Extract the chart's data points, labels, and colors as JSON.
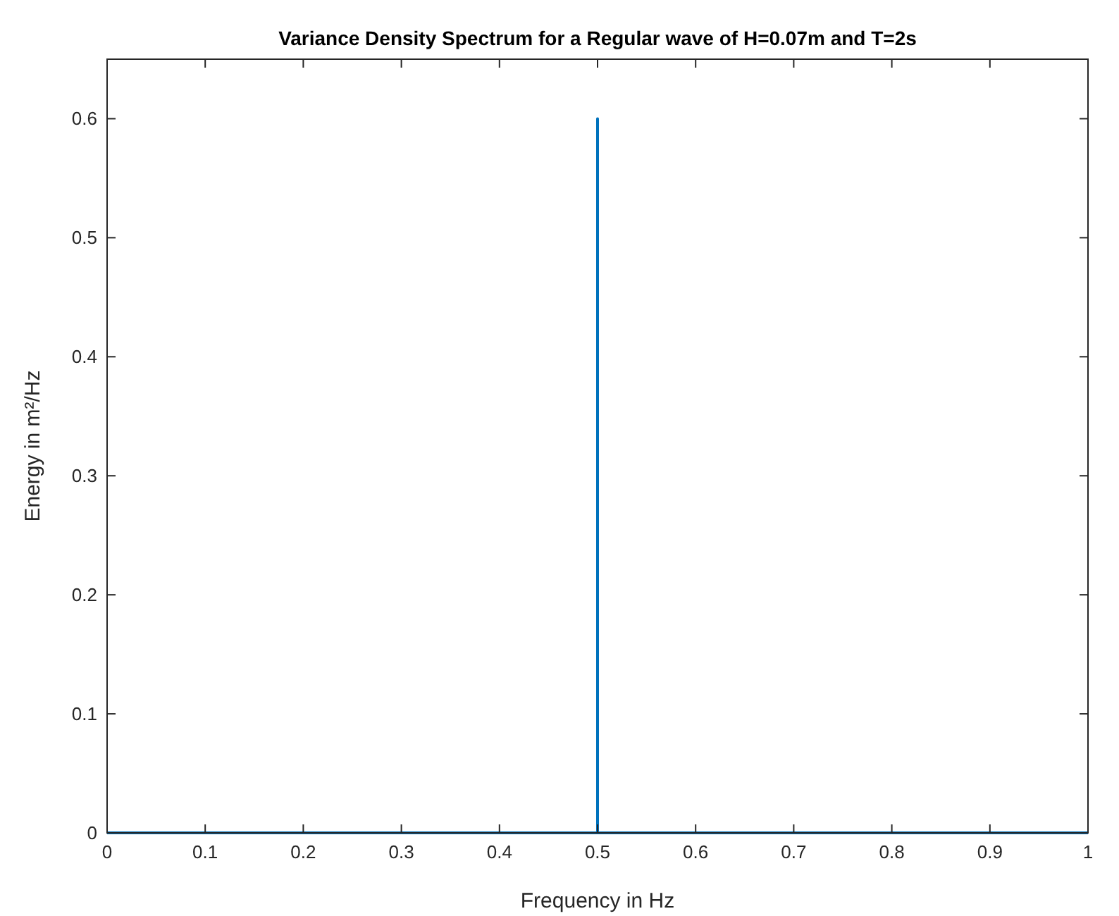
{
  "chart_data": {
    "type": "line",
    "title": "Variance Density Spectrum for a Regular wave of H=0.07m and T=2s",
    "xlabel": "Frequency in Hz",
    "ylabel": "Energy in m²/Hz",
    "x": [
      0,
      0.5,
      0.5,
      0.5,
      1
    ],
    "series": [
      {
        "color": "#0072bd",
        "values": [
          0,
          0,
          0.6,
          0,
          0
        ]
      }
    ],
    "xlim": [
      0,
      1
    ],
    "xticks": [
      0,
      0.1,
      0.2,
      0.3,
      0.4,
      0.5,
      0.6,
      0.7,
      0.8,
      0.9,
      1
    ],
    "ylim": [
      0,
      0.65
    ],
    "yticks": [
      0,
      0.1,
      0.2,
      0.3,
      0.4,
      0.5,
      0.6
    ],
    "grid": false,
    "line_style": "solid"
  }
}
